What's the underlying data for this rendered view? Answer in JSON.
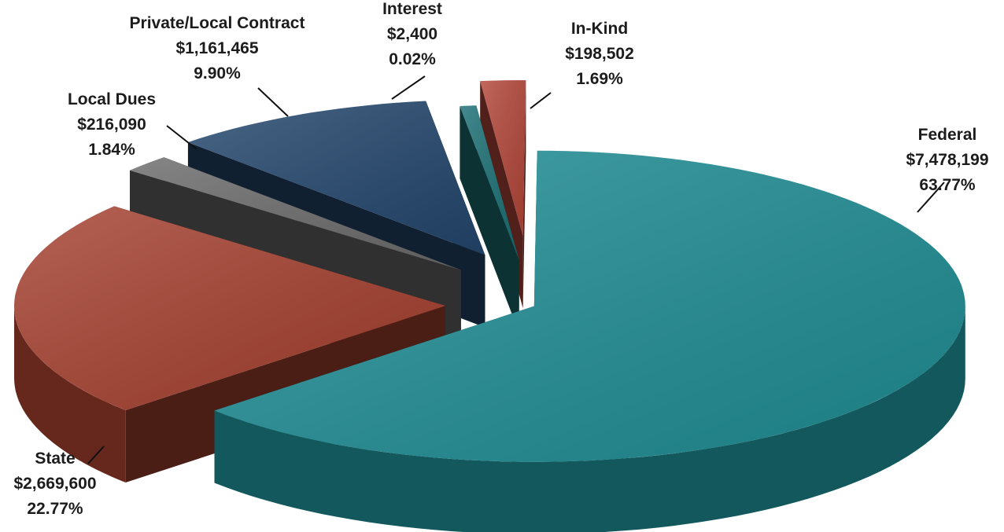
{
  "chart_data": {
    "type": "pie",
    "title": "",
    "style": "3d-exploded",
    "slices": [
      {
        "label": "Federal",
        "value": 7478199,
        "value_text": "$7,478,199",
        "percent_text": "63.77%",
        "color": "#1f8e95"
      },
      {
        "label": "State",
        "value": 2669600,
        "value_text": "$2,669,600",
        "percent_text": "22.77%",
        "color": "#a5402f"
      },
      {
        "label": "Local Dues",
        "value": 216090,
        "value_text": "$216,090",
        "percent_text": "1.84%",
        "color": "#6b6b6b"
      },
      {
        "label": "Private/Local Contract",
        "value": 1161465,
        "value_text": "$1,161,465",
        "percent_text": "9.90%",
        "color": "#23466d"
      },
      {
        "label": "Interest",
        "value": 2400,
        "value_text": "$2,400",
        "percent_text": "0.02%",
        "color": "#1a6f74"
      },
      {
        "label": "In-Kind",
        "value": 198502,
        "value_text": "$198,502",
        "percent_text": "1.69%",
        "color": "#b34639"
      }
    ]
  }
}
